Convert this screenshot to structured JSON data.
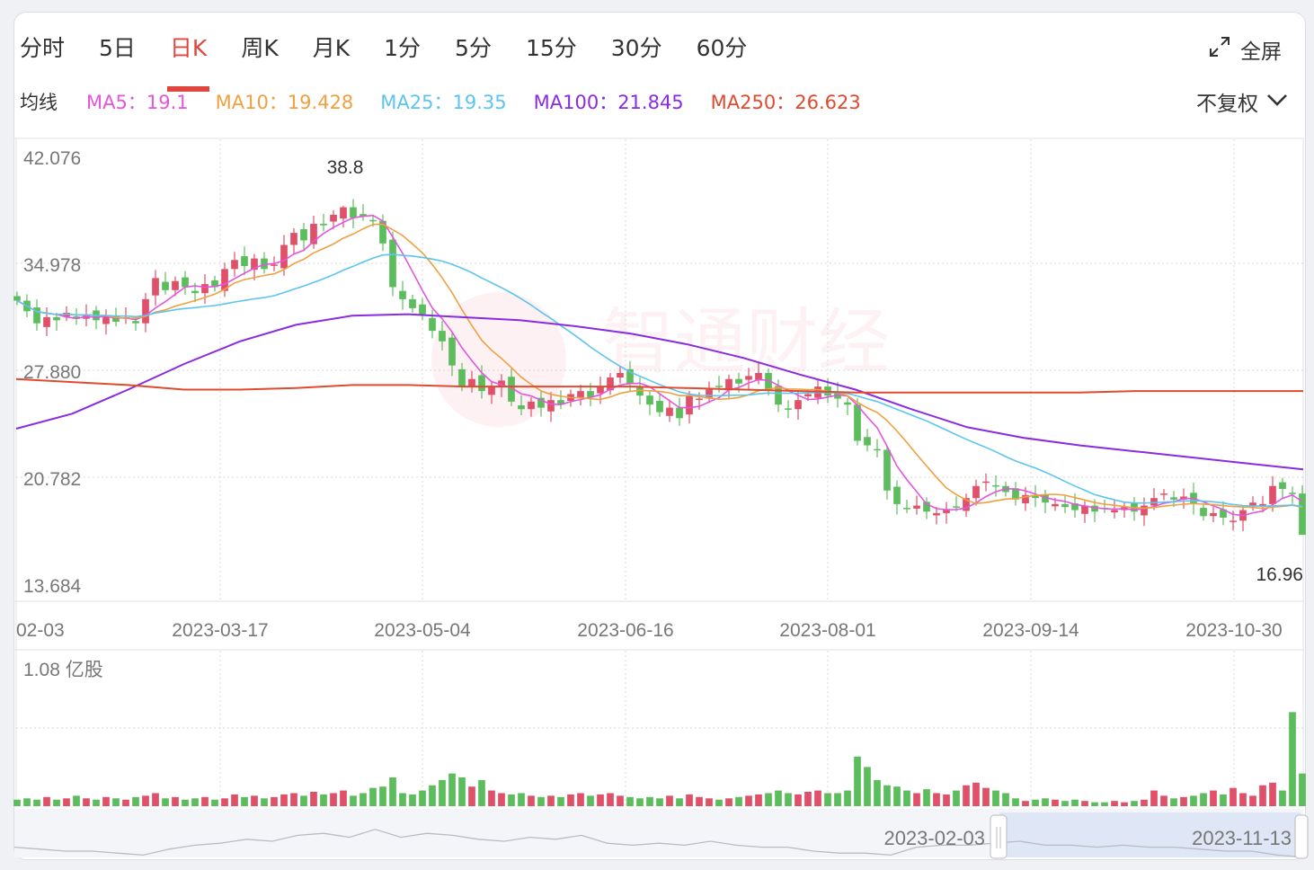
{
  "tabs": [
    {
      "label": "分时"
    },
    {
      "label": "5日"
    },
    {
      "label": "日K",
      "active": true
    },
    {
      "label": "周K"
    },
    {
      "label": "月K"
    },
    {
      "label": "1分"
    },
    {
      "label": "5分"
    },
    {
      "label": "15分"
    },
    {
      "label": "30分"
    },
    {
      "label": "60分"
    }
  ],
  "fullscreen_label": "全屏",
  "ma_title": "均线",
  "ma_items": [
    {
      "label": "MA5：19.1",
      "color": "#e455e0"
    },
    {
      "label": "MA10：19.428",
      "color": "#f0a040"
    },
    {
      "label": "MA25：19.35",
      "color": "#5cc4f0"
    },
    {
      "label": "MA100：21.845",
      "color": "#8a2be2"
    },
    {
      "label": "MA250：26.623",
      "color": "#e04a2e"
    }
  ],
  "adjust_label": "不复权",
  "watermark": "智通财经",
  "colors": {
    "up": "#e05068",
    "down": "#5cbd5c",
    "grid": "#d8d8d8"
  },
  "chart_data": {
    "type": "candlestick",
    "ylim": [
      13.684,
      42.076
    ],
    "y_ticks": [
      "42.076",
      "34.978",
      "27.880",
      "20.782",
      "13.684"
    ],
    "x_ticks": [
      "02-03",
      "2023-03-17",
      "2023-05-04",
      "2023-06-16",
      "2023-08-01",
      "2023-09-14",
      "2023-10-30"
    ],
    "max_label": "38.8",
    "min_label": "16.96",
    "closes": [
      32.5,
      31.8,
      31.0,
      31.4,
      31.2,
      31.7,
      31.3,
      31.6,
      31.2,
      31.5,
      31.1,
      31.4,
      31.0,
      32.6,
      34.0,
      33.2,
      33.8,
      33.4,
      33.0,
      33.6,
      33.4,
      34.6,
      35.2,
      34.8,
      35.3,
      34.6,
      34.9,
      36.2,
      37.0,
      36.5,
      37.6,
      37.5,
      38.2,
      38.7,
      38.0,
      38.1,
      37.8,
      36.3,
      33.4,
      32.6,
      32.0,
      31.6,
      30.5,
      29.8,
      28.2,
      26.8,
      27.3,
      26.5,
      26.8,
      27.2,
      25.8,
      25.3,
      25.8,
      25.4,
      25.9,
      25.6,
      26.3,
      26.5,
      26.1,
      26.8,
      27.4,
      27.7,
      27.0,
      26.2,
      25.6,
      25.1,
      25.4,
      24.7,
      26.2,
      26.0,
      26.6,
      26.8,
      27.3,
      27.0,
      27.5,
      27.7,
      26.6,
      25.6,
      25.3,
      25.9,
      26.3,
      26.8,
      26.2,
      26.0,
      25.6,
      23.2,
      22.9,
      22.6,
      19.9,
      19.0,
      18.7,
      18.9,
      18.5,
      18.4,
      18.6,
      18.8,
      19.4,
      20.2,
      20.5,
      20.2,
      19.8,
      19.3,
      19.6,
      19.4,
      19.1,
      19.0,
      18.8,
      18.6,
      18.9,
      18.5,
      18.7,
      18.6,
      18.8,
      18.5,
      18.9,
      19.4,
      19.7,
      19.3,
      19.5,
      19.0,
      18.2,
      18.4,
      18.1,
      17.9,
      18.6,
      19.1,
      19.0,
      20.2,
      20.0,
      19.7,
      16.96
    ],
    "ma100": [
      24.0,
      25.0,
      26.6,
      28.3,
      29.8,
      30.9,
      31.5,
      31.6,
      31.4,
      31.2,
      30.8,
      30.3,
      29.6,
      28.7,
      27.6,
      26.6,
      25.3,
      24.1,
      23.4,
      22.9,
      22.5,
      22.1,
      21.7,
      21.3
    ],
    "ma250": [
      27.3,
      27.1,
      26.9,
      26.6,
      26.6,
      26.7,
      26.9,
      26.9,
      26.8,
      26.8,
      26.8,
      26.8,
      26.7,
      26.6,
      26.5,
      26.4,
      26.4,
      26.4,
      26.4,
      26.4,
      26.5,
      26.5,
      26.5,
      26.5
    ],
    "volume_max_label": "1.08 亿股",
    "volume_max": 1.08,
    "volumes": [
      0.05,
      0.06,
      0.05,
      0.07,
      0.05,
      0.06,
      0.08,
      0.06,
      0.05,
      0.07,
      0.06,
      0.05,
      0.07,
      0.08,
      0.1,
      0.06,
      0.07,
      0.05,
      0.06,
      0.07,
      0.05,
      0.06,
      0.09,
      0.07,
      0.08,
      0.06,
      0.07,
      0.09,
      0.1,
      0.08,
      0.11,
      0.09,
      0.1,
      0.12,
      0.08,
      0.1,
      0.14,
      0.15,
      0.22,
      0.1,
      0.09,
      0.12,
      0.16,
      0.2,
      0.25,
      0.22,
      0.15,
      0.2,
      0.12,
      0.1,
      0.09,
      0.1,
      0.08,
      0.07,
      0.08,
      0.07,
      0.09,
      0.1,
      0.08,
      0.09,
      0.1,
      0.08,
      0.07,
      0.06,
      0.07,
      0.06,
      0.08,
      0.06,
      0.09,
      0.07,
      0.06,
      0.05,
      0.06,
      0.07,
      0.08,
      0.09,
      0.1,
      0.12,
      0.1,
      0.09,
      0.11,
      0.12,
      0.1,
      0.1,
      0.12,
      0.38,
      0.3,
      0.2,
      0.16,
      0.15,
      0.12,
      0.1,
      0.13,
      0.1,
      0.09,
      0.12,
      0.16,
      0.18,
      0.14,
      0.12,
      0.1,
      0.06,
      0.04,
      0.05,
      0.06,
      0.05,
      0.04,
      0.05,
      0.04,
      0.03,
      0.03,
      0.04,
      0.03,
      0.04,
      0.05,
      0.12,
      0.08,
      0.06,
      0.07,
      0.08,
      0.1,
      0.12,
      0.09,
      0.14,
      0.1,
      0.08,
      0.16,
      0.18,
      0.12,
      0.72,
      0.25
    ],
    "overview_values": [
      21,
      20,
      19,
      19,
      18,
      17,
      20,
      22,
      23,
      25,
      24,
      27,
      28,
      26,
      30,
      26,
      28,
      27,
      25,
      24,
      26,
      25,
      27,
      23,
      22,
      23,
      22,
      24,
      22,
      21,
      21,
      19,
      18,
      18,
      17,
      21,
      22,
      22,
      23,
      24,
      22,
      22,
      21,
      22,
      21,
      21,
      20,
      19,
      19,
      17,
      16
    ]
  },
  "navigator": {
    "start_label": "2023-02-03",
    "end_label": "2023-11-13"
  }
}
